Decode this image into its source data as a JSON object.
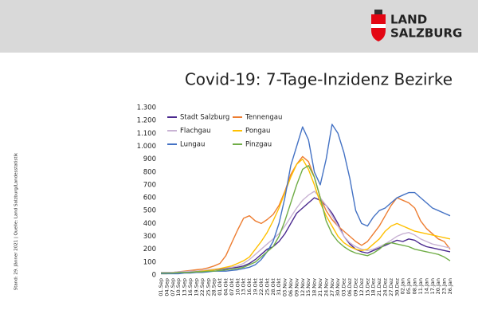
{
  "logo": {
    "line1": "LAND",
    "line2": "SALZBURG"
  },
  "slide_title": "Covid-19: 7-Tage-Inzidenz Bezirke",
  "source_note": "Stand: 29. Jänner 2021 | Quelle: Land Salzburg/Landesstatistik",
  "chart_data": {
    "type": "line",
    "categories": [
      "01.Sep",
      "04.Sep",
      "07.Sep",
      "10.Sep",
      "13.Sep",
      "16.Sep",
      "19.Sep",
      "22.Sep",
      "25.Sep",
      "28.Sep",
      "01.Okt",
      "04.Okt",
      "07.Okt",
      "10.Okt",
      "13.Okt",
      "16.Okt",
      "19.Okt",
      "22.Okt",
      "25.Okt",
      "28.Okt",
      "31.Okt",
      "03.Nov",
      "06.Nov",
      "09.Nov",
      "12.Nov",
      "15.Nov",
      "18.Nov",
      "21.Nov",
      "24.Nov",
      "27.Nov",
      "30.Nov",
      "03.Dez",
      "06.Dez",
      "09.Dez",
      "12.Dez",
      "15.Dez",
      "18.Dez",
      "21.Dez",
      "24.Dez",
      "27.Dez",
      "30.Dez",
      "02.Jan",
      "05.Jan",
      "08.Jan",
      "11.Jan",
      "14.Jan",
      "17.Jan",
      "20.Jan",
      "23.Jan",
      "26.Jan"
    ],
    "series": [
      {
        "name": "Stadt Salzburg",
        "color": "#4b2a8f",
        "values": [
          20,
          20,
          20,
          20,
          25,
          25,
          30,
          30,
          35,
          40,
          45,
          50,
          55,
          60,
          70,
          90,
          120,
          160,
          200,
          220,
          260,
          320,
          400,
          480,
          520,
          560,
          600,
          580,
          540,
          480,
          400,
          300,
          240,
          200,
          180,
          170,
          190,
          210,
          230,
          250,
          270,
          260,
          280,
          270,
          240,
          220,
          210,
          200,
          190,
          180
        ]
      },
      {
        "name": "Tennengau",
        "color": "#ed7d31",
        "values": [
          15,
          15,
          20,
          25,
          30,
          35,
          40,
          45,
          55,
          70,
          90,
          150,
          250,
          350,
          440,
          460,
          420,
          400,
          430,
          470,
          540,
          650,
          780,
          860,
          920,
          880,
          760,
          600,
          500,
          430,
          380,
          340,
          300,
          260,
          230,
          260,
          320,
          380,
          460,
          540,
          600,
          580,
          560,
          520,
          420,
          360,
          320,
          280,
          260,
          200
        ]
      },
      {
        "name": "Flachgau",
        "color": "#c9b3d4",
        "values": [
          20,
          20,
          20,
          25,
          25,
          30,
          30,
          35,
          40,
          45,
          50,
          55,
          60,
          70,
          90,
          120,
          160,
          200,
          240,
          280,
          320,
          380,
          450,
          520,
          580,
          620,
          650,
          600,
          540,
          460,
          380,
          300,
          250,
          220,
          200,
          190,
          200,
          220,
          240,
          270,
          300,
          320,
          330,
          310,
          280,
          260,
          240,
          230,
          220,
          210
        ]
      },
      {
        "name": "Pongau",
        "color": "#ffc000",
        "values": [
          10,
          10,
          15,
          15,
          20,
          20,
          25,
          30,
          35,
          40,
          50,
          60,
          70,
          90,
          110,
          140,
          200,
          260,
          330,
          420,
          520,
          640,
          760,
          860,
          900,
          820,
          700,
          560,
          460,
          380,
          300,
          250,
          220,
          200,
          190,
          200,
          240,
          280,
          340,
          380,
          400,
          380,
          360,
          340,
          330,
          320,
          310,
          300,
          290,
          280
        ]
      },
      {
        "name": "Lungau",
        "color": "#4472c4",
        "values": [
          10,
          10,
          10,
          10,
          15,
          15,
          20,
          20,
          25,
          30,
          30,
          30,
          35,
          40,
          50,
          60,
          80,
          120,
          180,
          260,
          400,
          600,
          850,
          1000,
          1150,
          1050,
          800,
          700,
          900,
          1170,
          1100,
          950,
          750,
          500,
          400,
          380,
          450,
          500,
          520,
          560,
          600,
          620,
          640,
          640,
          600,
          560,
          520,
          500,
          480,
          460
        ]
      },
      {
        "name": "Pinzgau",
        "color": "#70ad47",
        "values": [
          15,
          15,
          15,
          20,
          20,
          20,
          25,
          25,
          30,
          30,
          35,
          40,
          45,
          50,
          60,
          80,
          100,
          140,
          180,
          220,
          300,
          420,
          560,
          700,
          820,
          850,
          760,
          600,
          420,
          320,
          260,
          220,
          190,
          170,
          160,
          150,
          170,
          200,
          240,
          250,
          240,
          230,
          220,
          200,
          190,
          180,
          170,
          160,
          140,
          110
        ]
      }
    ],
    "ylim": [
      0,
      1300
    ],
    "yticks": [
      0,
      100,
      200,
      300,
      400,
      500,
      600,
      700,
      800,
      900,
      {
        "value": 1000,
        "label": "1.000"
      },
      {
        "value": 1100,
        "label": "1.100"
      },
      {
        "value": 1200,
        "label": "1.200"
      },
      {
        "value": 1300,
        "label": "1.300"
      }
    ]
  }
}
